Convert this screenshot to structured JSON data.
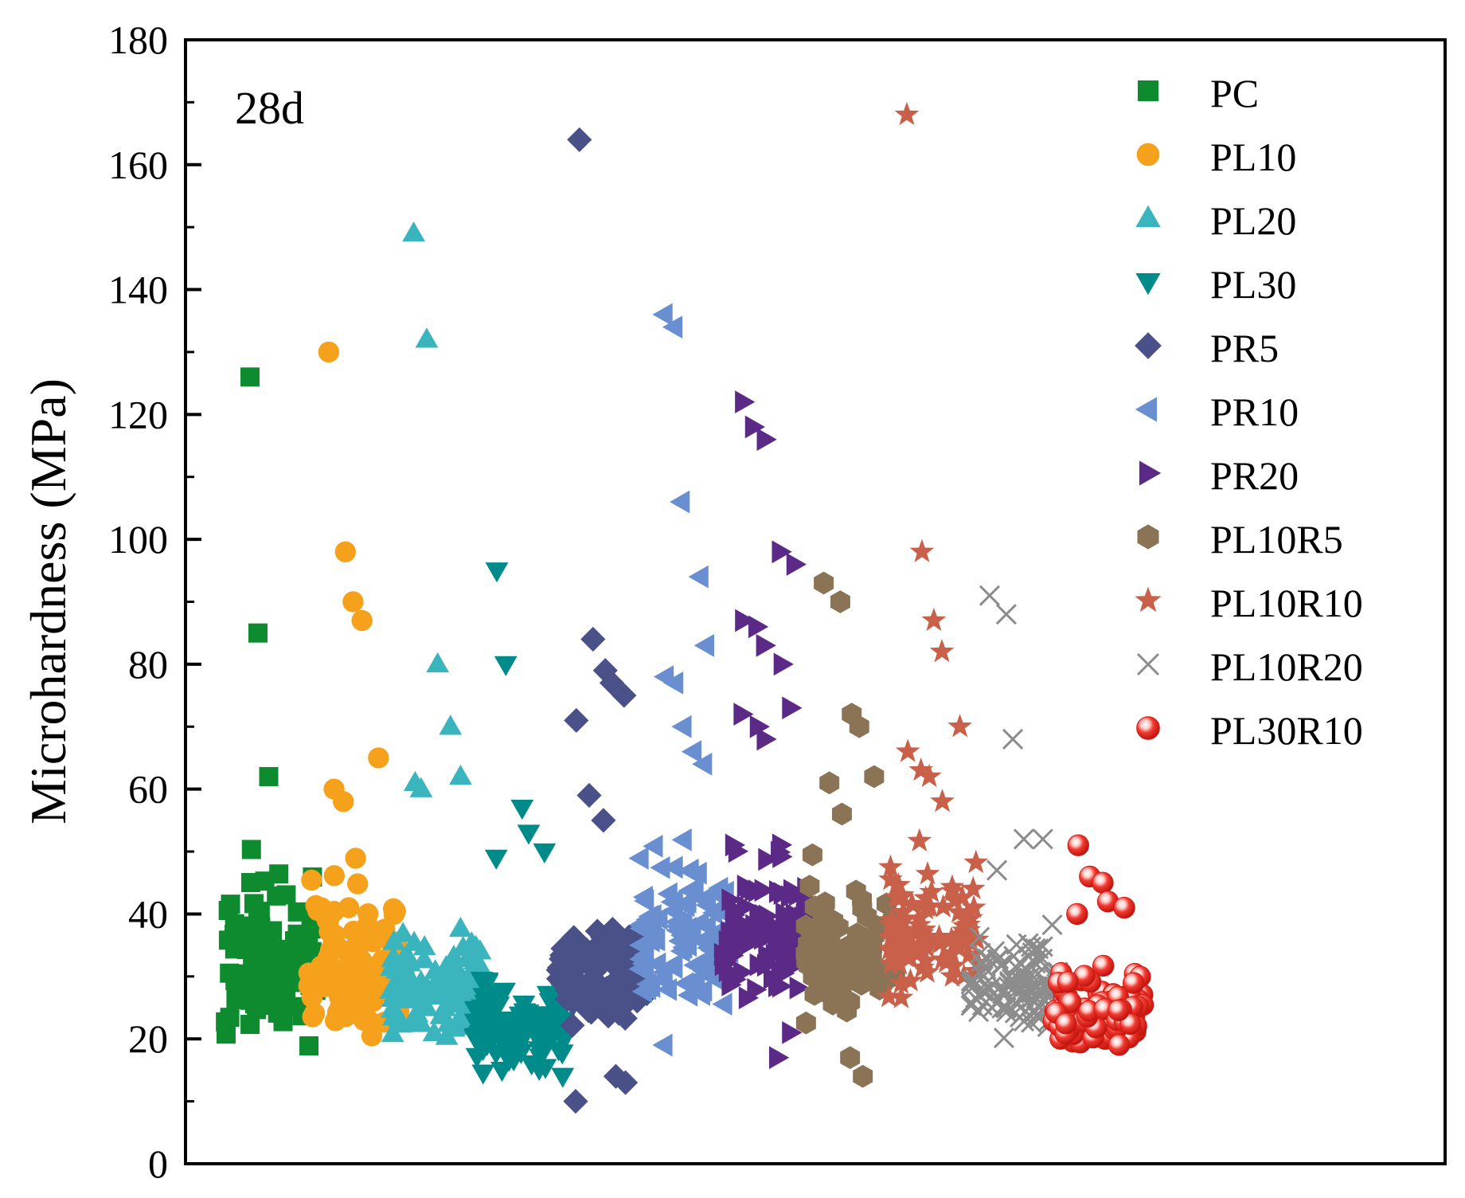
{
  "chart_data": {
    "type": "scatter",
    "ylabel": "Microhardness (MPa)",
    "xlabel": "",
    "ylim": [
      0,
      180
    ],
    "yticks": [
      "0",
      "20",
      "40",
      "60",
      "80",
      "100",
      "120",
      "140",
      "160",
      "180"
    ],
    "annotation": "28d",
    "legend_position": "top-right",
    "series": [
      {
        "name": "PC",
        "marker": "square",
        "color": "#0e8a2f",
        "outliers": [
          126,
          85,
          62
        ],
        "cluster": {
          "center": 1.0,
          "halfwidth": 0.55,
          "ymin": 17,
          "ymax": 56,
          "count": 100,
          "seed": 11
        }
      },
      {
        "name": "PL10",
        "marker": "circle",
        "color": "#f5a11c",
        "outliers": [
          130,
          98,
          90,
          87,
          65,
          60,
          58
        ],
        "cluster": {
          "center": 2.0,
          "halfwidth": 0.55,
          "ymin": 17,
          "ymax": 58,
          "count": 100,
          "seed": 23
        }
      },
      {
        "name": "PL20",
        "marker": "triangle-up",
        "color": "#3bb5bd",
        "outliers": [
          149,
          132,
          80,
          70,
          62,
          61,
          60
        ],
        "cluster": {
          "center": 3.0,
          "halfwidth": 0.55,
          "ymin": 17,
          "ymax": 48,
          "count": 100,
          "seed": 37
        }
      },
      {
        "name": "PL30",
        "marker": "triangle-down",
        "color": "#008b8b",
        "outliers": [
          95,
          80,
          57,
          53,
          50,
          49
        ],
        "cluster": {
          "center": 4.0,
          "halfwidth": 0.55,
          "ymin": 12,
          "ymax": 38,
          "count": 110,
          "seed": 41
        }
      },
      {
        "name": "PR5",
        "marker": "diamond",
        "color": "#4a5088",
        "outliers": [
          164,
          84,
          79,
          77,
          75,
          71,
          59,
          55,
          14,
          13,
          10
        ],
        "cluster": {
          "center": 5.0,
          "halfwidth": 0.55,
          "ymin": 20,
          "ymax": 48,
          "count": 100,
          "seed": 53
        }
      },
      {
        "name": "PR10",
        "marker": "triangle-left",
        "color": "#6a8fd0",
        "outliers": [
          136,
          134,
          106,
          94,
          83,
          78,
          77,
          70,
          66,
          64,
          19
        ],
        "cluster": {
          "center": 6.0,
          "halfwidth": 0.55,
          "ymin": 22,
          "ymax": 62,
          "count": 100,
          "seed": 67
        }
      },
      {
        "name": "PR20",
        "marker": "triangle-right",
        "color": "#5b2a86",
        "outliers": [
          122,
          118,
          116,
          98,
          96,
          87,
          86,
          83,
          80,
          73,
          72,
          70,
          68,
          17,
          21
        ],
        "cluster": {
          "center": 7.0,
          "halfwidth": 0.55,
          "ymin": 22,
          "ymax": 62,
          "count": 100,
          "seed": 71
        }
      },
      {
        "name": "PL10R5",
        "marker": "hexagon",
        "color": "#8b7355",
        "outliers": [
          93,
          90,
          72,
          70,
          62,
          61,
          56,
          17,
          14
        ],
        "cluster": {
          "center": 8.0,
          "halfwidth": 0.55,
          "ymin": 21,
          "ymax": 55,
          "count": 90,
          "seed": 83
        }
      },
      {
        "name": "PL10R10",
        "marker": "star",
        "color": "#c8604a",
        "outliers": [
          168,
          98,
          87,
          82,
          70,
          66,
          63,
          62,
          58
        ],
        "cluster": {
          "center": 9.0,
          "halfwidth": 0.55,
          "ymin": 23,
          "ymax": 58,
          "count": 100,
          "seed": 97
        }
      },
      {
        "name": "PL10R20",
        "marker": "x",
        "color": "#8c8c8c",
        "outliers": [
          91,
          88,
          68,
          52,
          52,
          47
        ],
        "cluster": {
          "center": 10.0,
          "halfwidth": 0.55,
          "ymin": 19,
          "ymax": 45,
          "count": 110,
          "seed": 101
        }
      },
      {
        "name": "PL30R10",
        "marker": "sphere",
        "color": "#e8261e",
        "outliers": [
          51,
          46,
          45,
          42,
          41,
          40
        ],
        "cluster": {
          "center": 11.0,
          "halfwidth": 0.55,
          "ymin": 16,
          "ymax": 38,
          "count": 110,
          "seed": 113
        }
      }
    ]
  }
}
